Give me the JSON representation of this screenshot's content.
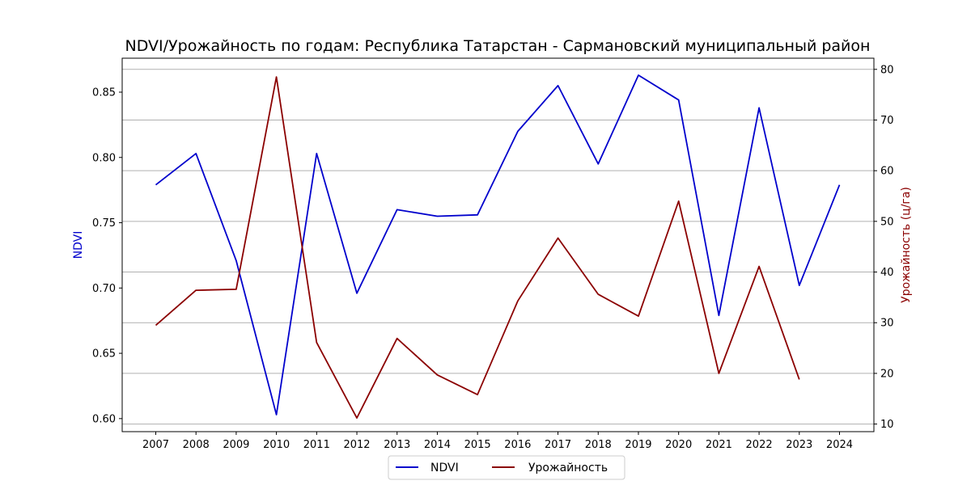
{
  "chart_data": {
    "type": "line",
    "title": "NDVI/Урожайность по годам: Республика Татарстан - Сармановский муниципальный район",
    "xlabel": "",
    "categories": [
      "2007",
      "2008",
      "2009",
      "2010",
      "2011",
      "2012",
      "2013",
      "2014",
      "2015",
      "2016",
      "2017",
      "2018",
      "2019",
      "2020",
      "2021",
      "2022",
      "2023",
      "2024"
    ],
    "y_left": {
      "label": "NDVI",
      "color": "#0000cc",
      "ylim": [
        0.59,
        0.876
      ],
      "ticks": [
        "0.60",
        "0.65",
        "0.70",
        "0.75",
        "0.80",
        "0.85"
      ]
    },
    "y_right": {
      "label": "Урожайность (ц/га)",
      "color": "#8b0000",
      "ylim": [
        8.5,
        82.2
      ],
      "ticks": [
        "10",
        "20",
        "30",
        "40",
        "50",
        "60",
        "70",
        "80"
      ]
    },
    "grid": "horizontal (right axis ticks)",
    "legend_position": "bottom-center",
    "series": [
      {
        "name": "NDVI",
        "axis": "left",
        "color": "#0000cc",
        "values": [
          0.779,
          0.803,
          0.721,
          0.603,
          0.803,
          0.696,
          0.76,
          0.755,
          0.756,
          0.82,
          0.855,
          0.795,
          0.863,
          0.844,
          0.679,
          0.838,
          0.702,
          0.779
        ]
      },
      {
        "name": "Урожайность",
        "axis": "right",
        "color": "#8b0000",
        "values": [
          29.5,
          36.4,
          36.6,
          78.5,
          26.1,
          11.2,
          26.9,
          19.7,
          15.8,
          34.3,
          46.7,
          35.6,
          31.3,
          54.0,
          20.0,
          41.1,
          18.8,
          null
        ]
      }
    ]
  }
}
